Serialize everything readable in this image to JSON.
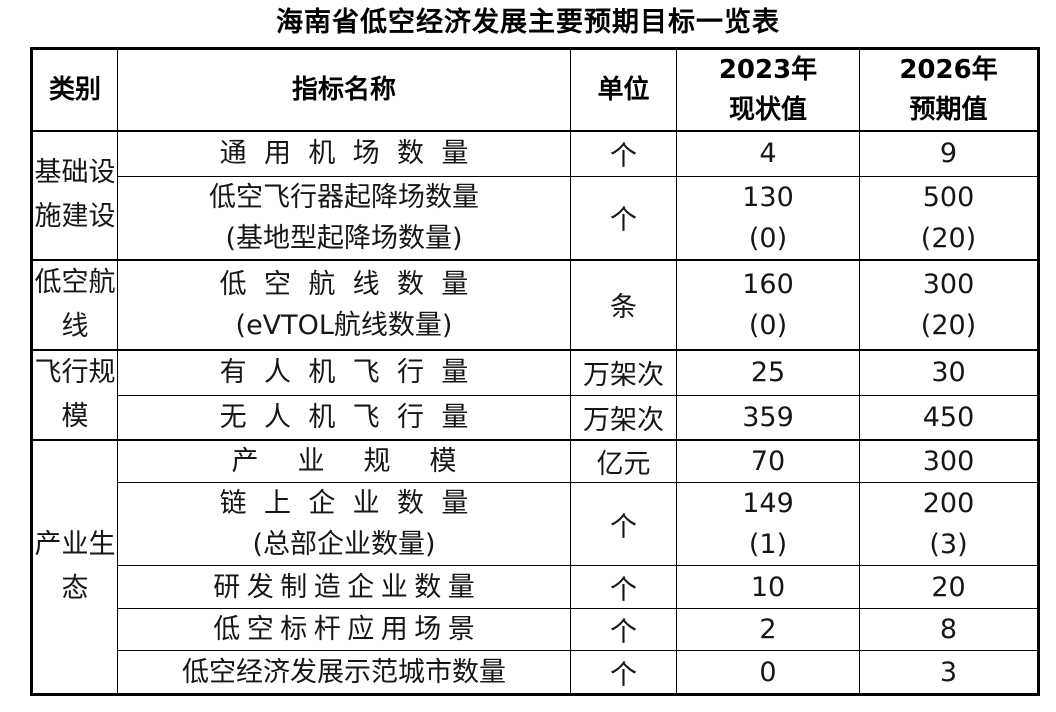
{
  "page_title": "海南省低空经济发展主要预期目标一览表",
  "table": {
    "columns": {
      "category": "类别",
      "indicator": "指标名称",
      "unit": "单位",
      "y2023": [
        "2023年",
        "现状值"
      ],
      "y2026": [
        "2026年",
        "预期值"
      ]
    },
    "rows": [
      {
        "category": "基础设施建设",
        "category_rowspan": 2,
        "indicator": [
          "通用机场数量"
        ],
        "unit": "个",
        "v2023": [
          "4"
        ],
        "v2026": [
          "9"
        ]
      },
      {
        "indicator": [
          "低空飞行器起降场数量",
          "(基地型起降场数量)"
        ],
        "unit": "个",
        "v2023": [
          "130",
          "(0)"
        ],
        "v2026": [
          "500",
          "(20)"
        ]
      },
      {
        "category": "低空航线",
        "category_rowspan": 1,
        "indicator": [
          "低空航线数量",
          "(eVTOL航线数量)"
        ],
        "unit": "条",
        "v2023": [
          "160",
          "(0)"
        ],
        "v2026": [
          "300",
          "(20)"
        ]
      },
      {
        "category": "飞行规模",
        "category_rowspan": 2,
        "indicator": [
          "有人机飞行量"
        ],
        "unit": "万架次",
        "v2023": [
          "25"
        ],
        "v2026": [
          "30"
        ]
      },
      {
        "indicator": [
          "无人机飞行量"
        ],
        "unit": "万架次",
        "v2023": [
          "359"
        ],
        "v2026": [
          "450"
        ]
      },
      {
        "category": "产业生态",
        "category_rowspan": 5,
        "indicator": [
          "产业规模"
        ],
        "unit": "亿元",
        "v2023": [
          "70"
        ],
        "v2026": [
          "300"
        ]
      },
      {
        "indicator": [
          "链上企业数量",
          "(总部企业数量)"
        ],
        "unit": "个",
        "v2023": [
          "149",
          "(1)"
        ],
        "v2026": [
          "200",
          "(3)"
        ]
      },
      {
        "indicator": [
          "研发制造企业数量"
        ],
        "unit": "个",
        "v2023": [
          "10"
        ],
        "v2026": [
          "20"
        ]
      },
      {
        "indicator": [
          "低空标杆应用场景"
        ],
        "unit": "个",
        "v2023": [
          "2"
        ],
        "v2026": [
          "8"
        ]
      },
      {
        "indicator": [
          "低空经济发展示范城市数量"
        ],
        "unit": "个",
        "v2023": [
          "0"
        ],
        "v2026": [
          "3"
        ]
      }
    ]
  }
}
